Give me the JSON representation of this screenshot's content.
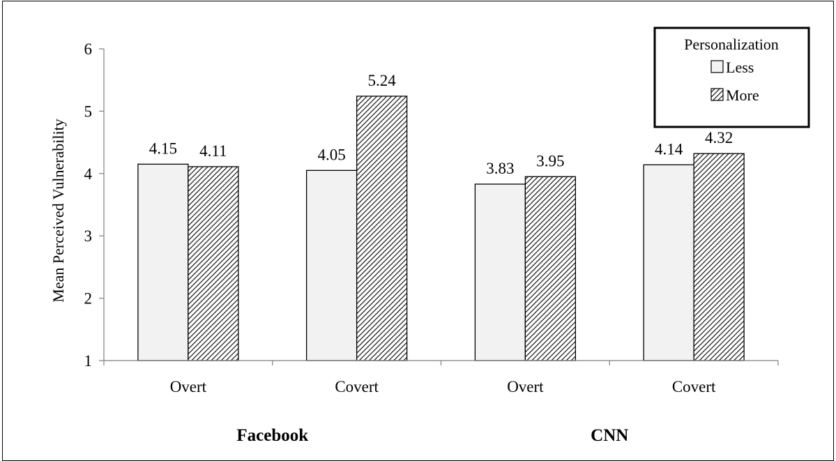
{
  "chart_data": {
    "type": "bar",
    "ylabel": "Mean Perceived Vulnerability",
    "ylim": [
      1,
      6
    ],
    "yticks": [
      1,
      2,
      3,
      4,
      5,
      6
    ],
    "grid": false,
    "legend": {
      "title": "Personalization",
      "placement": "top-right"
    },
    "groups": [
      {
        "label": "Facebook",
        "categories": [
          "Overt",
          "Covert"
        ]
      },
      {
        "label": "CNN",
        "categories": [
          "Overt",
          "Covert"
        ]
      }
    ],
    "categories": [
      "Overt",
      "Covert",
      "Overt",
      "Covert"
    ],
    "series": [
      {
        "name": "Less",
        "values": [
          4.15,
          4.05,
          3.83,
          4.14
        ],
        "data_labels": [
          "4.15",
          "4.05",
          "3.83",
          "4.14"
        ],
        "fill": "#f2f2f2",
        "pattern": "solid"
      },
      {
        "name": "More",
        "values": [
          4.11,
          5.24,
          3.95,
          4.32
        ],
        "data_labels": [
          "4.11",
          "5.24",
          "3.95",
          "4.32"
        ],
        "fill": "#ffffff",
        "pattern": "diagonal-hatch"
      }
    ]
  }
}
